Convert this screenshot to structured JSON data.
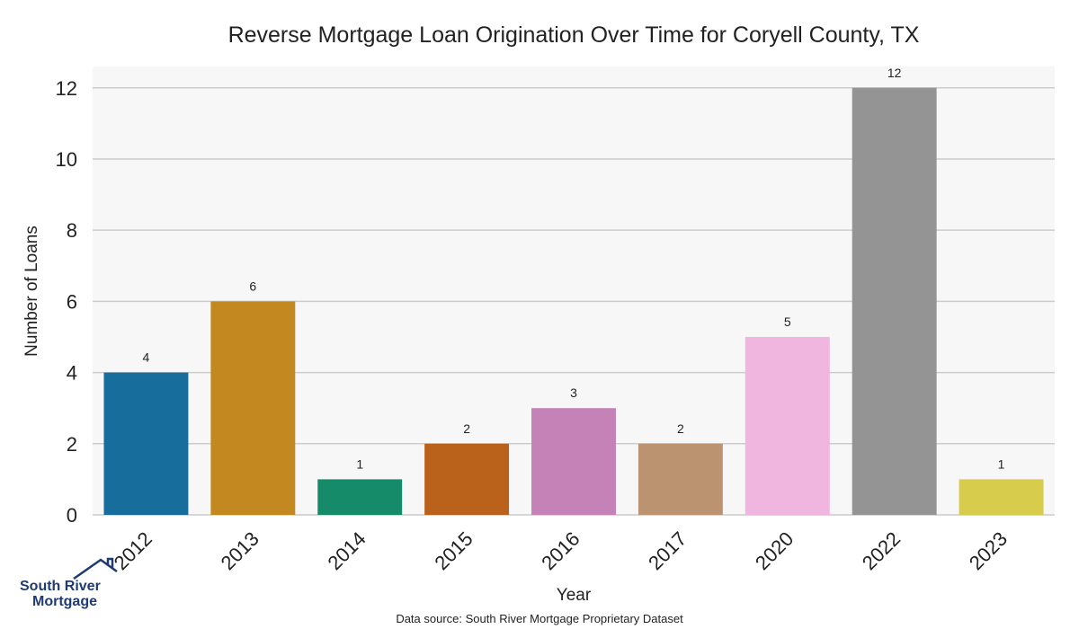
{
  "chart_data": {
    "type": "bar",
    "title": "Reverse Mortgage Loan Origination Over Time for Coryell County, TX",
    "xlabel": "Year",
    "ylabel": "Number of Loans",
    "categories": [
      "2012",
      "2013",
      "2014",
      "2015",
      "2016",
      "2017",
      "2020",
      "2022",
      "2023"
    ],
    "values": [
      4,
      6,
      1,
      2,
      3,
      2,
      5,
      12,
      1
    ],
    "data_labels": [
      "4",
      "6",
      "1",
      "2",
      "3",
      "2",
      "5",
      "12",
      "1"
    ],
    "colors": [
      "#176d9c",
      "#c38820",
      "#158b6a",
      "#ba611b",
      "#c482b6",
      "#bb9370",
      "#f0b6df",
      "#949494",
      "#d7cc4c"
    ],
    "ylim": [
      0,
      12.6
    ],
    "yticks": [
      0,
      2,
      4,
      6,
      8,
      10,
      12
    ],
    "grid": "horizontal",
    "plot_background": "#f7f7f7",
    "grid_color": "#cccccc",
    "source": "Data source: South River Mortgage Proprietary Dataset"
  },
  "logo": {
    "line1": "South River",
    "line2": "Mortgage",
    "color": "#1f3b73",
    "icon": "house-roof-icon"
  }
}
